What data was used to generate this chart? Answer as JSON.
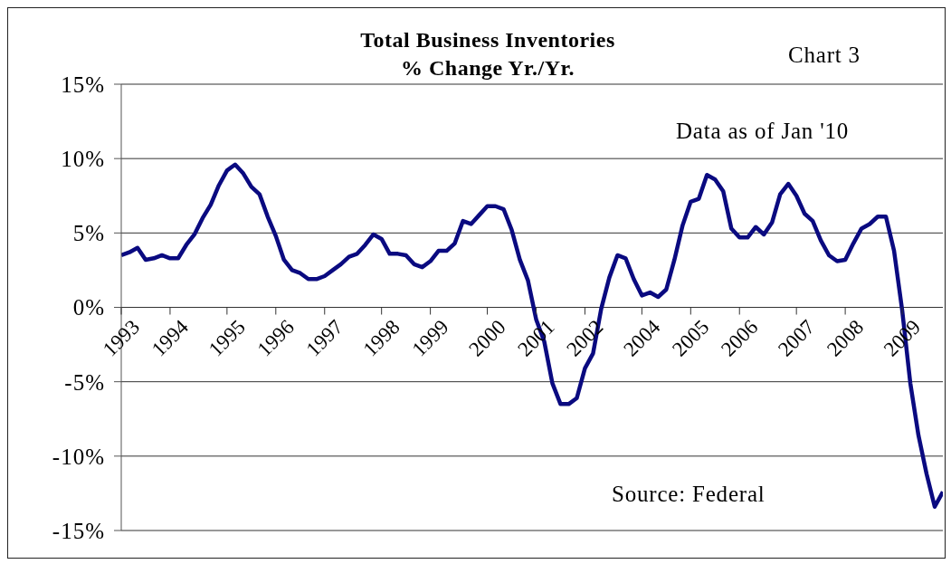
{
  "chart_data": {
    "type": "line",
    "title": "Total Business Inventories\n% Change Yr./Yr.",
    "annotations": [
      "Chart 3",
      "Data as of Jan '10",
      "Source: Federal"
    ],
    "categories": [
      "1993",
      null,
      null,
      null,
      null,
      null,
      "1994",
      null,
      null,
      null,
      null,
      null,
      null,
      "1995",
      null,
      null,
      null,
      null,
      null,
      "1996",
      null,
      null,
      null,
      null,
      null,
      "1997",
      null,
      null,
      null,
      null,
      null,
      null,
      "1998",
      null,
      null,
      null,
      null,
      null,
      "1999",
      null,
      null,
      null,
      null,
      null,
      null,
      "2000",
      null,
      null,
      null,
      null,
      null,
      "2001",
      null,
      null,
      null,
      null,
      null,
      "2002",
      null,
      null,
      null,
      null,
      null,
      null,
      "2004",
      null,
      null,
      null,
      null,
      null,
      "2005",
      null,
      null,
      null,
      null,
      null,
      "2006",
      null,
      null,
      null,
      null,
      null,
      null,
      "2007",
      null,
      null,
      null,
      null,
      null,
      "2008",
      null,
      null,
      null,
      null,
      null,
      null,
      "2009",
      null,
      null,
      null,
      null,
      null
    ],
    "series": [
      {
        "color": "#0a0a80",
        "values": [
          3.5,
          3.7,
          4.0,
          3.2,
          3.3,
          3.5,
          3.3,
          3.3,
          4.2,
          4.9,
          6.0,
          6.9,
          8.2,
          9.2,
          9.6,
          9.0,
          8.1,
          7.6,
          6.1,
          4.8,
          3.2,
          2.5,
          2.3,
          1.9,
          1.9,
          2.1,
          2.5,
          2.9,
          3.4,
          3.6,
          4.2,
          4.9,
          4.6,
          3.6,
          3.6,
          3.5,
          2.9,
          2.7,
          3.1,
          3.8,
          3.8,
          4.3,
          5.8,
          5.6,
          6.2,
          6.8,
          6.8,
          6.6,
          5.2,
          3.2,
          1.8,
          -0.8,
          -2.3,
          -5.1,
          -6.5,
          -6.5,
          -6.1,
          -4.1,
          -3.1,
          -0.1,
          2.0,
          3.5,
          3.3,
          1.9,
          0.8,
          1.0,
          0.7,
          1.2,
          3.2,
          5.5,
          7.1,
          7.3,
          8.9,
          8.6,
          7.8,
          5.3,
          4.7,
          4.7,
          5.4,
          4.9,
          5.7,
          7.6,
          8.3,
          7.5,
          6.3,
          5.8,
          4.5,
          3.5,
          3.1,
          3.2,
          4.3,
          5.3,
          5.6,
          6.1,
          6.1,
          3.8,
          -0.2,
          -5.1,
          -8.6,
          -11.2,
          -13.4,
          -12.4
        ]
      }
    ],
    "ylim": [
      -15,
      15
    ],
    "yticks": [
      {
        "value": -15,
        "label": "-15%"
      },
      {
        "value": -10,
        "label": "-10%"
      },
      {
        "value": -5,
        "label": "-5%"
      },
      {
        "value": 0,
        "label": "0%"
      },
      {
        "value": 5,
        "label": "5%"
      },
      {
        "value": 10,
        "label": "10%"
      },
      {
        "value": 15,
        "label": "15%"
      }
    ],
    "grid": "y",
    "legend": false,
    "marker": "none",
    "line_style": "solid"
  }
}
